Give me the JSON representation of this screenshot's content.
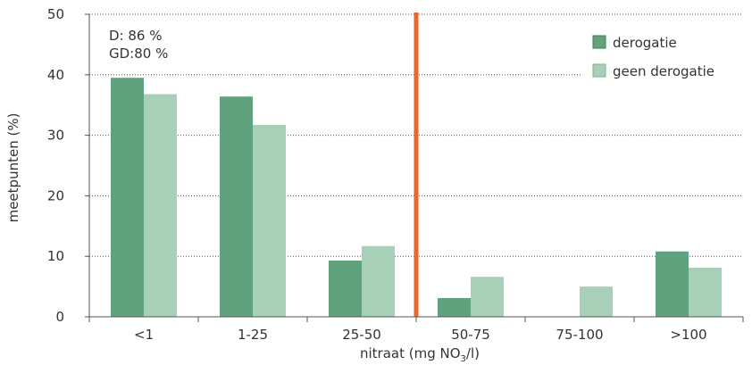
{
  "chart_data": {
    "type": "bar",
    "categories": [
      "<1",
      "1-25",
      "25-50",
      "50-75",
      "75-100",
      ">100"
    ],
    "series": [
      {
        "name": "derogatie",
        "values": [
          39.5,
          36.4,
          9.3,
          3.1,
          0,
          10.8
        ],
        "color": "#5fa27d"
      },
      {
        "name": "geen derogatie",
        "values": [
          36.8,
          31.7,
          11.7,
          6.6,
          5.0,
          8.1
        ],
        "color": "#a8cfb8"
      }
    ],
    "xlabel": "nitraat (mg NO3/l)",
    "xlabel_parts": {
      "before": "nitraat (mg NO",
      "sub": "3",
      "after": "/l)"
    },
    "ylabel": "meetpunten (%)",
    "ylim": [
      0,
      50
    ],
    "yticks": [
      0,
      10,
      20,
      30,
      40,
      50
    ],
    "grid": true,
    "legend_position": "top-right",
    "annotations": [
      "D: 86 %",
      "GD:80 %"
    ],
    "threshold_line": {
      "x_between": [
        "25-50",
        "50-75"
      ],
      "color": "#e8672a"
    }
  }
}
